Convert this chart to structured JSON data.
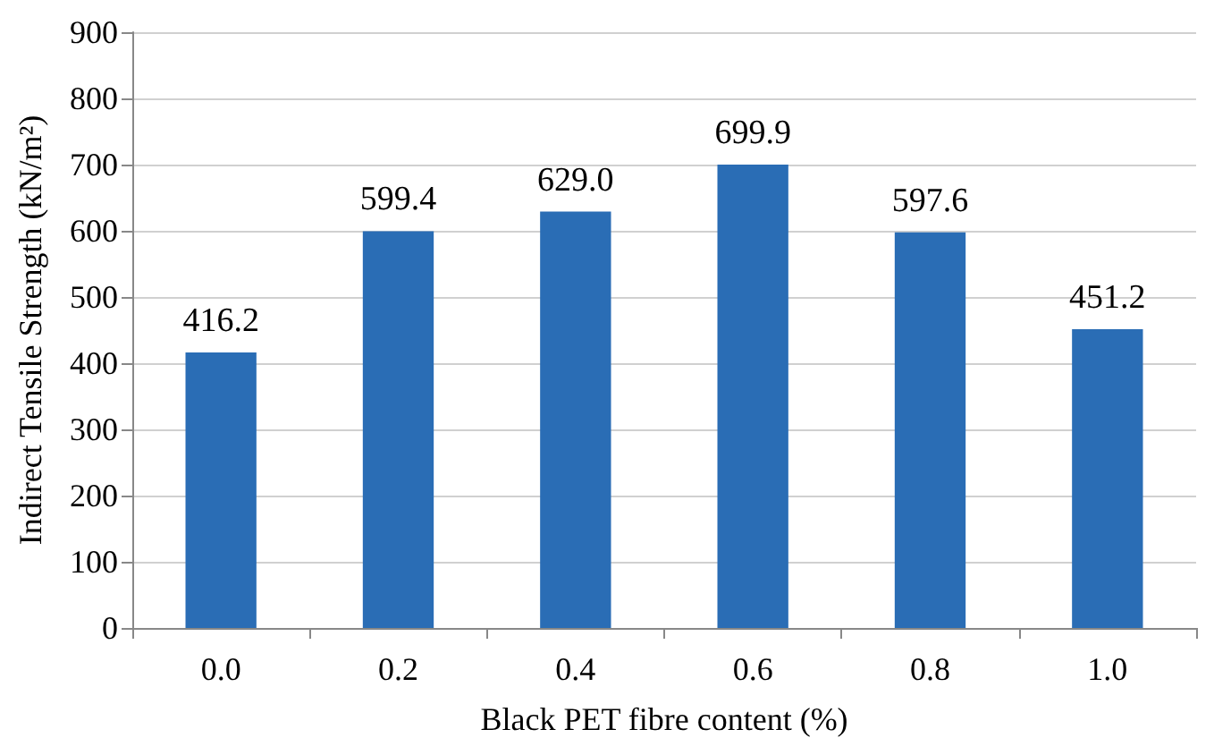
{
  "chart_data": {
    "type": "bar",
    "xlabel": "Black PET fibre content (%)",
    "ylabel": "Indirect Tensile Strength (kN/m²)",
    "categories": [
      "0.0",
      "0.2",
      "0.4",
      "0.6",
      "0.8",
      "1.0"
    ],
    "values": [
      416.2,
      599.4,
      629.0,
      699.9,
      597.6,
      451.2
    ],
    "value_labels": [
      "416.2",
      "599.4",
      "629.0",
      "699.9",
      "597.6",
      "451.2"
    ],
    "color": "#2a6db5",
    "ylim": [
      0,
      900
    ],
    "yticks": [
      0,
      100,
      200,
      300,
      400,
      500,
      600,
      700,
      800,
      900
    ],
    "grid": "y"
  }
}
